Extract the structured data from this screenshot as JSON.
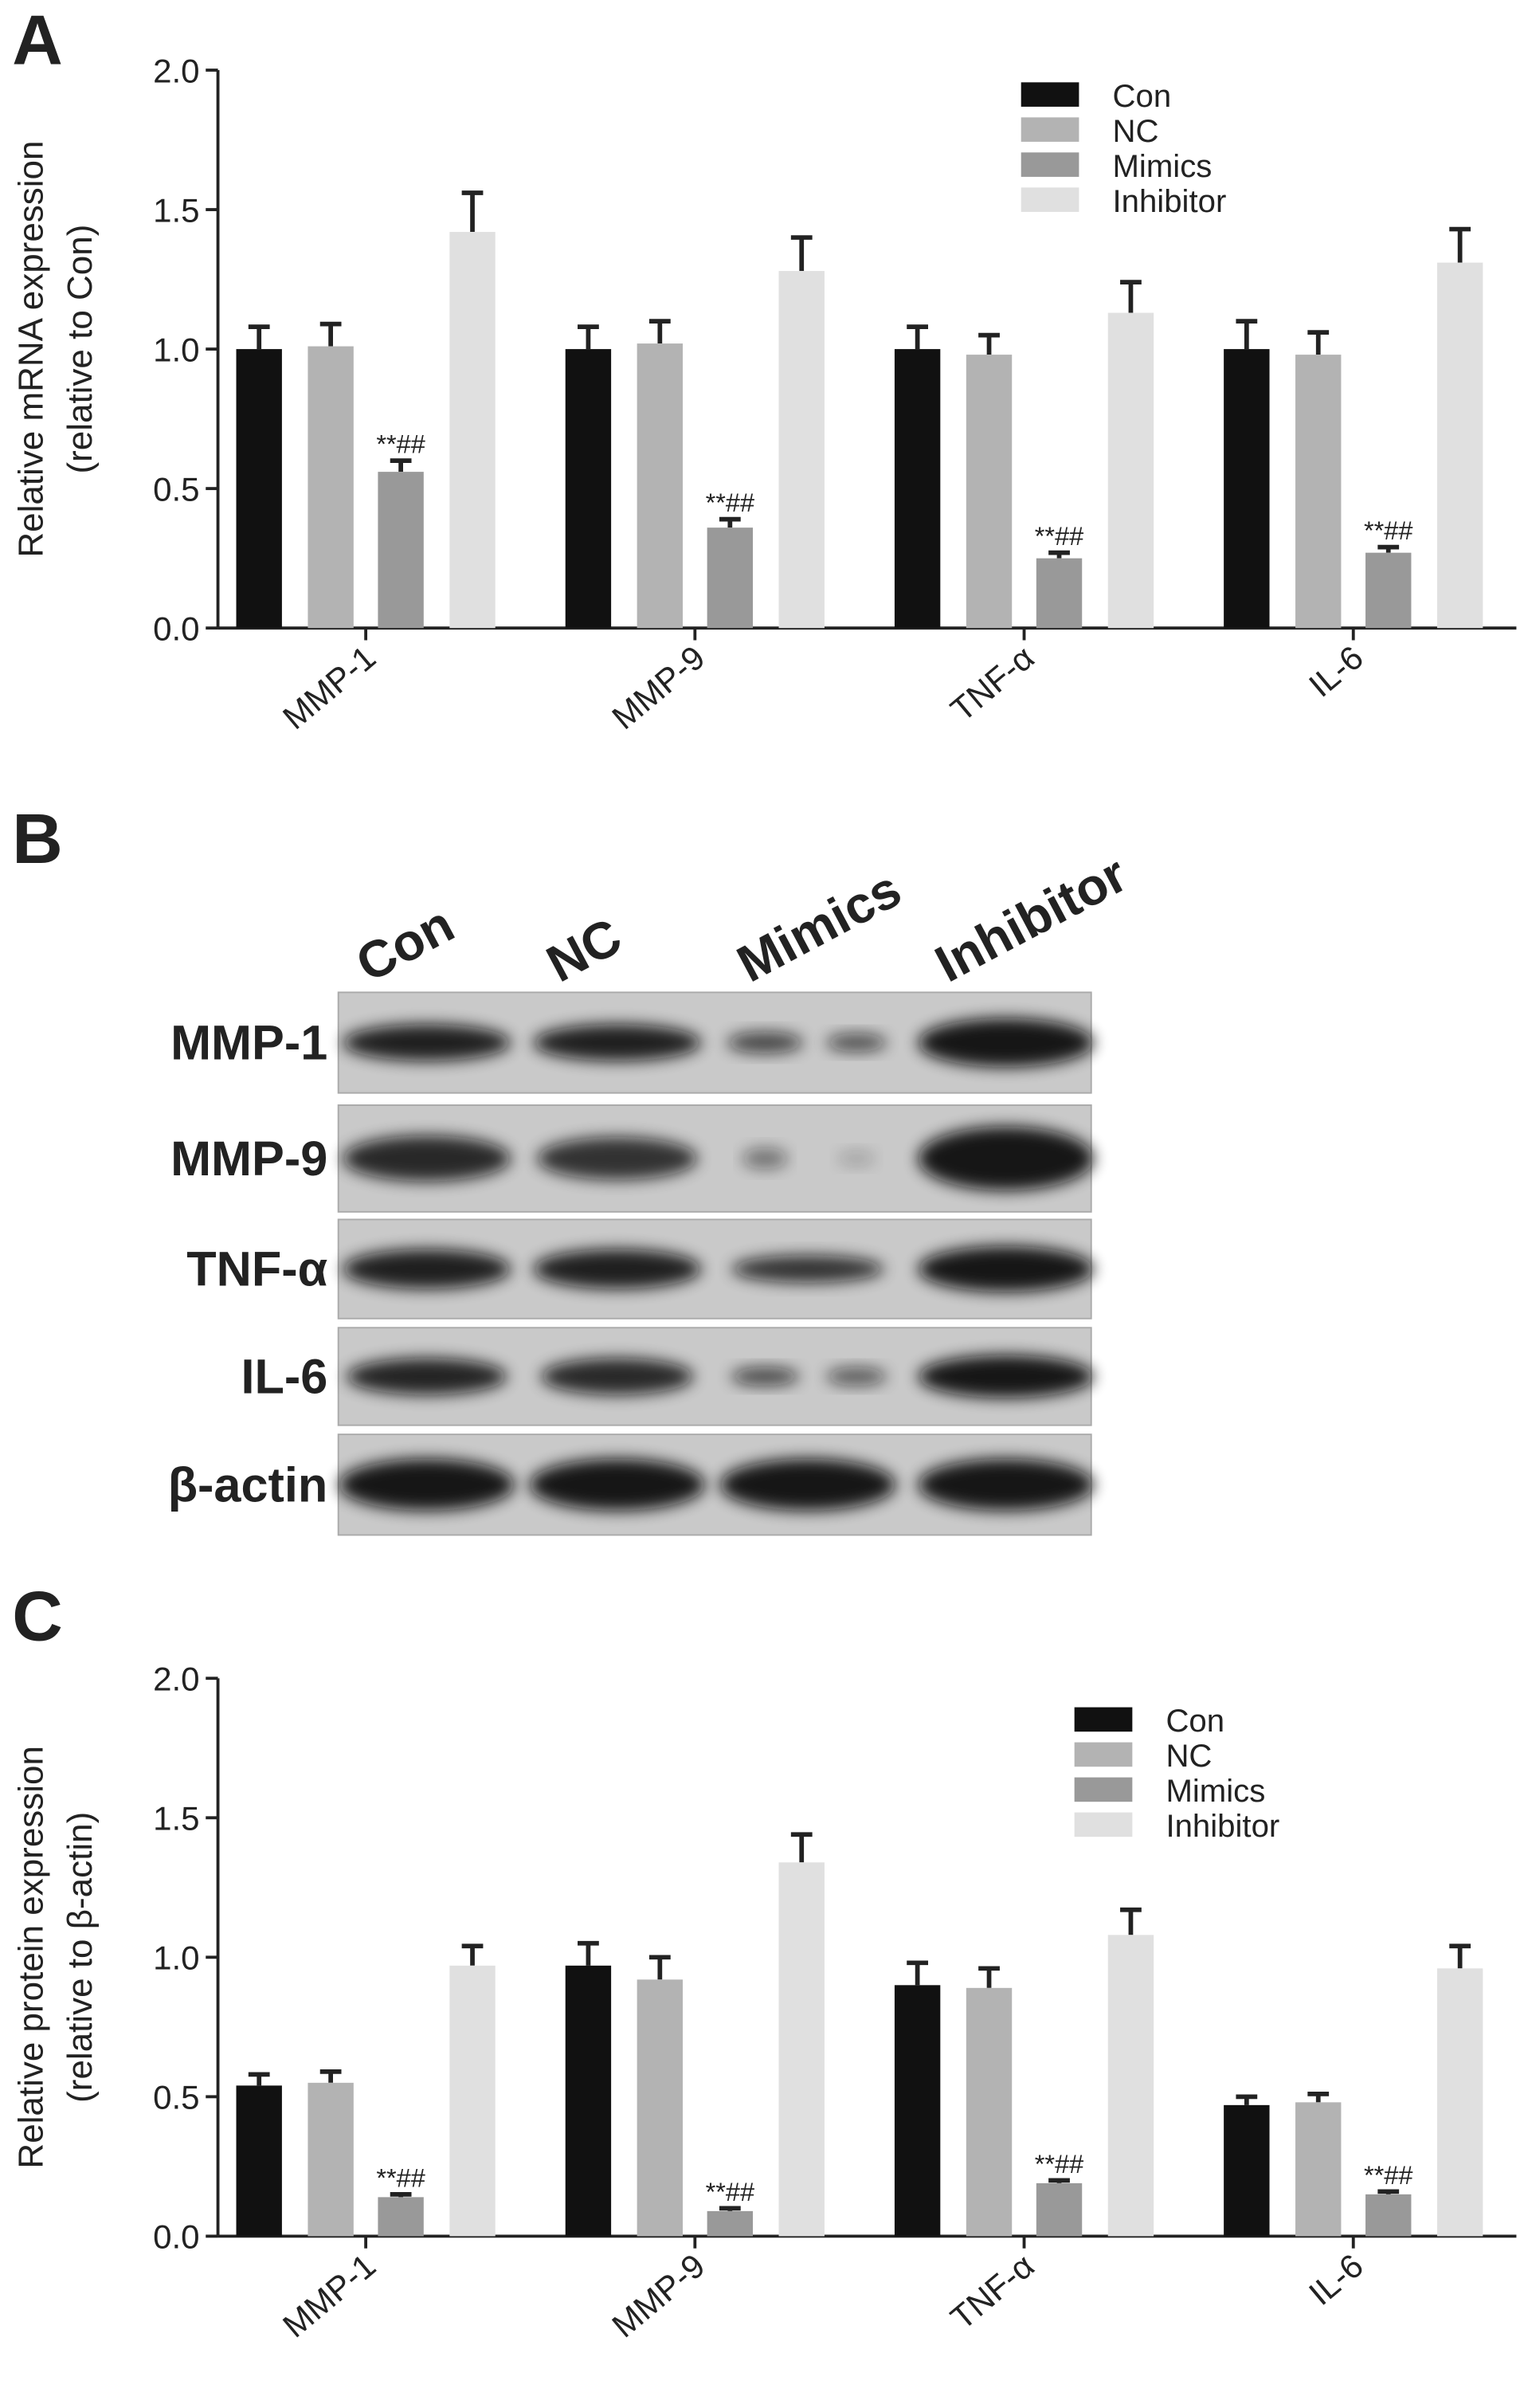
{
  "chart_data": [
    {
      "type": "bar",
      "panel_label": "A",
      "y_label": "Relative mRNA expression",
      "y_sublabel": "(relative to Con)",
      "categories": [
        "MMP-1",
        "MMP-9",
        "TNF-α",
        "IL-6"
      ],
      "series": [
        {
          "name": "Con",
          "color": "#111111",
          "values": [
            1.0,
            1.0,
            1.0,
            1.0
          ],
          "errors": [
            0.08,
            0.08,
            0.08,
            0.1
          ]
        },
        {
          "name": "NC",
          "color": "#b3b3b3",
          "values": [
            1.01,
            1.02,
            0.98,
            0.98
          ],
          "errors": [
            0.08,
            0.08,
            0.07,
            0.08
          ]
        },
        {
          "name": "Mimics",
          "color": "#999999",
          "values": [
            0.56,
            0.36,
            0.25,
            0.27
          ],
          "errors": [
            0.04,
            0.03,
            0.02,
            0.02
          ]
        },
        {
          "name": "Inhibitor",
          "color": "#e0e0e0",
          "values": [
            1.42,
            1.28,
            1.13,
            1.31
          ],
          "errors": [
            0.14,
            0.12,
            0.11,
            0.12
          ]
        }
      ],
      "annotations": [
        "**##",
        "**##",
        "**##",
        "**##"
      ],
      "ylim": [
        0,
        2
      ],
      "yticks": [
        {
          "value": 0,
          "label": "0.0"
        },
        0.5,
        {
          "value": 1,
          "label": "1.0"
        },
        1.5,
        {
          "value": 2,
          "label": "2.0"
        }
      ],
      "legend": "upper right"
    },
    {
      "type": "bar",
      "panel_label": "C",
      "y_label": "Relative protein expression",
      "y_sublabel": "(relative to β-actin)",
      "categories": [
        "MMP-1",
        "MMP-9",
        "TNF-α",
        "IL-6"
      ],
      "series": [
        {
          "name": "Con",
          "color": "#111111",
          "values": [
            0.54,
            0.97,
            0.9,
            0.47
          ],
          "errors": [
            0.04,
            0.08,
            0.08,
            0.03
          ]
        },
        {
          "name": "NC",
          "color": "#b3b3b3",
          "values": [
            0.55,
            0.92,
            0.89,
            0.48
          ],
          "errors": [
            0.04,
            0.08,
            0.07,
            0.03
          ]
        },
        {
          "name": "Mimics",
          "color": "#999999",
          "values": [
            0.14,
            0.09,
            0.19,
            0.15
          ],
          "errors": [
            0.01,
            0.01,
            0.01,
            0.01
          ]
        },
        {
          "name": "Inhibitor",
          "color": "#e0e0e0",
          "values": [
            0.97,
            1.34,
            1.08,
            0.96
          ],
          "errors": [
            0.07,
            0.1,
            0.09,
            0.08
          ]
        }
      ],
      "annotations": [
        "**##",
        "**##",
        "**##",
        "**##"
      ],
      "ylim": [
        0,
        2
      ],
      "yticks": [
        {
          "value": 0,
          "label": "0.0"
        },
        0.5,
        {
          "value": 1,
          "label": "1.0"
        },
        1.5,
        {
          "value": 2,
          "label": "2.0"
        }
      ],
      "legend": "upper right"
    }
  ],
  "blot": {
    "panel_label": "B",
    "lanes": [
      "Con",
      "NC",
      "Mimics",
      "Inhibitor"
    ],
    "rows": [
      "MMP-1",
      "MMP-9",
      "TNF-α",
      "IL-6",
      "β-actin"
    ]
  }
}
